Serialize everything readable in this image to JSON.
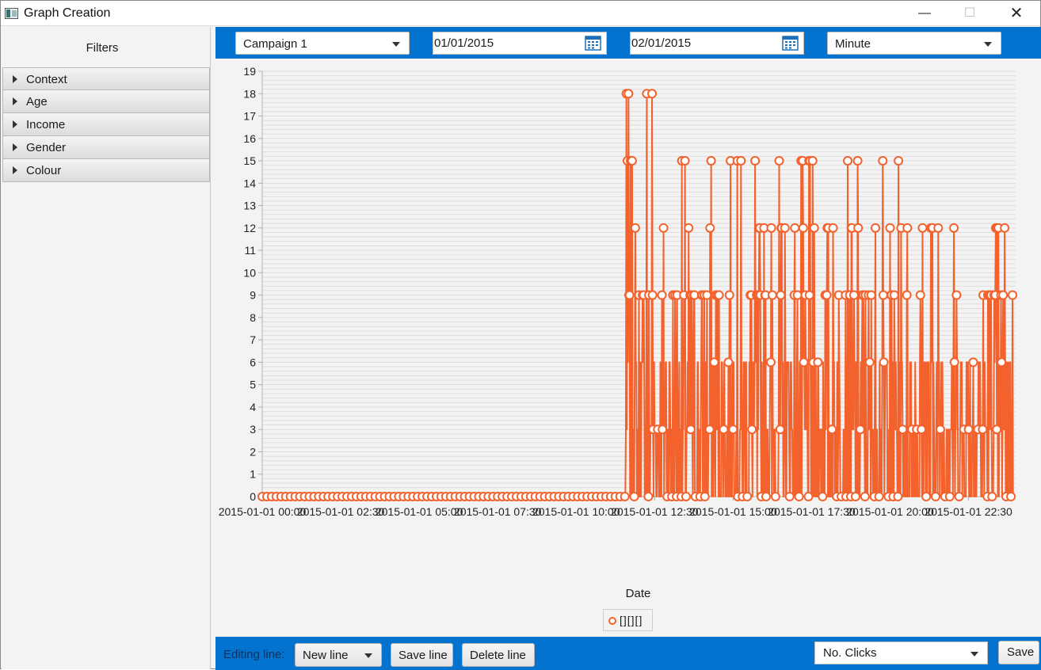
{
  "window": {
    "title": "Graph Creation",
    "icon": "app-window-icon"
  },
  "sidebar": {
    "title": "Filters",
    "items": [
      {
        "label": "Context"
      },
      {
        "label": "Age"
      },
      {
        "label": "Income"
      },
      {
        "label": "Gender"
      },
      {
        "label": "Colour"
      }
    ]
  },
  "toolbar": {
    "campaign": "Campaign 1",
    "start_date": "01/01/2015",
    "end_date": "02/01/2015",
    "granularity": "Minute"
  },
  "chart_data": {
    "type": "line",
    "title": "",
    "xlabel": "Date",
    "ylabel": "",
    "ylim": [
      0,
      19
    ],
    "y_ticks": [
      0,
      1,
      2,
      3,
      4,
      5,
      6,
      7,
      8,
      9,
      10,
      11,
      12,
      13,
      14,
      15,
      16,
      17,
      18,
      19
    ],
    "x_ticks": [
      "2015-01-01 00:00",
      "2015-01-01 02:30",
      "2015-01-01 05:00",
      "2015-01-01 07:30",
      "2015-01-01 10:00",
      "2015-01-01 12:30",
      "2015-01-01 15:00",
      "2015-01-01 17:30",
      "2015-01-01 20:00",
      "2015-01-01 22:30"
    ],
    "x_start": "2015-01-01 00:00",
    "x_end": "2015-01-01 23:59",
    "grid": true,
    "legend": "bottom-center",
    "series": [
      {
        "name": "[][][]",
        "color": "#f3622d"
      }
    ],
    "note_values": "Values are 0 from 00:00 until about 11:35, then vary per minute among 0, 3, 6, 9, 12, 15, 18; notable peaks of 18 around 11:35-11:40 and 12:15-12:25, many peaks of 15 and 12 between 11:40 and 22:00"
  },
  "bottombar": {
    "editing_label": "Editing line:",
    "line_select": "New line",
    "save_line": "Save line",
    "delete_line": "Delete line",
    "metric": "No. Clicks",
    "save": "Save"
  }
}
